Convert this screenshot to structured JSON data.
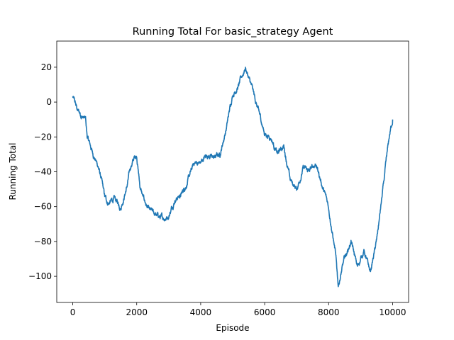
{
  "chart_data": {
    "type": "line",
    "title": "Running Total For basic_strategy Agent",
    "xlabel": "Episode",
    "ylabel": "Running Total",
    "xlim": [
      -500,
      10500
    ],
    "ylim": [
      -115,
      35
    ],
    "xticks": [
      0,
      2000,
      4000,
      6000,
      8000,
      10000
    ],
    "xtick_labels": [
      "0",
      "2000",
      "4000",
      "6000",
      "8000",
      "10000"
    ],
    "yticks": [
      20,
      0,
      -20,
      -40,
      -60,
      -80,
      -100
    ],
    "ytick_labels": [
      "20",
      "0",
      "−20",
      "−40",
      "−60",
      "−80",
      "−100"
    ],
    "grid": false,
    "line_color": "#1f77b4",
    "series": [
      {
        "x": [
          0,
          150,
          300,
          400,
          450,
          600,
          800,
          900,
          1000,
          1100,
          1300,
          1500,
          1700,
          1800,
          1900,
          2000,
          2100,
          2200,
          2400,
          2600,
          2800,
          3000,
          3200,
          3400,
          3600,
          3800,
          4000,
          4200,
          4400,
          4600,
          4800,
          5000,
          5200,
          5400,
          5600,
          5800,
          6000,
          6200,
          6400,
          6600,
          6800,
          7000,
          7200,
          7400,
          7600,
          7800,
          8000,
          8200,
          8300,
          8500,
          8700,
          8900,
          9100,
          9300,
          9500,
          9700,
          9900,
          10000
        ],
        "y": [
          3,
          -5,
          -8,
          -10,
          -20,
          -28,
          -37,
          -45,
          -55,
          -58,
          -56,
          -60,
          -48,
          -38,
          -33,
          -30,
          -48,
          -55,
          -63,
          -65,
          -67,
          -65,
          -55,
          -53,
          -45,
          -35,
          -35,
          -30,
          -32,
          -30,
          -15,
          5,
          10,
          20,
          8,
          -5,
          -18,
          -20,
          -30,
          -25,
          -45,
          -50,
          -38,
          -40,
          -35,
          -48,
          -60,
          -85,
          -105,
          -90,
          -80,
          -95,
          -85,
          -98,
          -80,
          -50,
          -20,
          -10
        ]
      }
    ]
  }
}
